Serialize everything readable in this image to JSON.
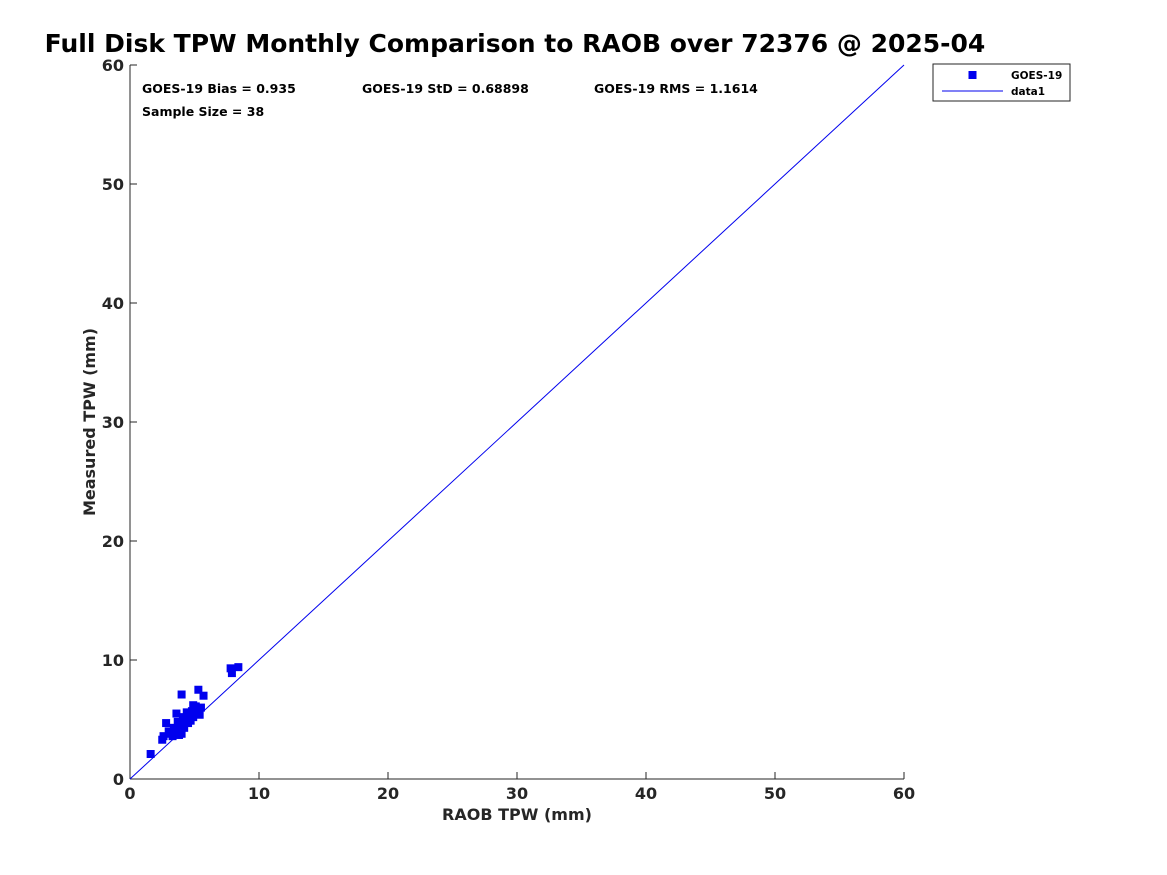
{
  "chart_data": {
    "type": "scatter",
    "title": "Full Disk TPW Monthly Comparison to RAOB over 72376 @ 2025-04",
    "xlabel": "RAOB TPW (mm)",
    "ylabel": "Measured TPW (mm)",
    "xlim": [
      0,
      60
    ],
    "ylim": [
      0,
      60
    ],
    "xticks": [
      0,
      10,
      20,
      30,
      40,
      50,
      60
    ],
    "yticks": [
      0,
      10,
      20,
      30,
      40,
      50,
      60
    ],
    "grid": false,
    "legend_position": "outside top-right",
    "stats": {
      "bias": "GOES-19 Bias = 0.935",
      "std": "GOES-19 StD = 0.68898",
      "rms": "GOES-19 RMS = 1.1614",
      "sample_size": "Sample Size = 38"
    },
    "series": [
      {
        "name": "GOES-19",
        "kind": "scatter",
        "marker": "square",
        "color": "#0000ee",
        "points": [
          [
            1.6,
            2.1
          ],
          [
            2.5,
            3.3
          ],
          [
            2.6,
            3.6
          ],
          [
            2.8,
            4.7
          ],
          [
            3.0,
            4.0
          ],
          [
            3.2,
            3.8
          ],
          [
            3.3,
            3.6
          ],
          [
            3.4,
            4.3
          ],
          [
            3.5,
            3.9
          ],
          [
            3.6,
            5.5
          ],
          [
            3.7,
            4.8
          ],
          [
            3.8,
            3.7
          ],
          [
            3.9,
            4.5
          ],
          [
            4.0,
            7.1
          ],
          [
            4.0,
            3.8
          ],
          [
            4.1,
            5.2
          ],
          [
            4.2,
            4.3
          ],
          [
            4.3,
            4.9
          ],
          [
            4.4,
            5.6
          ],
          [
            4.5,
            4.7
          ],
          [
            4.6,
            5.3
          ],
          [
            4.7,
            4.9
          ],
          [
            4.8,
            5.7
          ],
          [
            4.9,
            6.2
          ],
          [
            4.9,
            5.2
          ],
          [
            5.0,
            5.5
          ],
          [
            5.1,
            6.1
          ],
          [
            5.2,
            5.8
          ],
          [
            5.3,
            7.5
          ],
          [
            5.4,
            5.4
          ],
          [
            5.5,
            6.0
          ],
          [
            5.7,
            7.0
          ],
          [
            7.8,
            9.3
          ],
          [
            7.9,
            8.9
          ],
          [
            8.4,
            9.4
          ],
          [
            3.6,
            4.1
          ],
          [
            4.5,
            5.0
          ],
          [
            5.3,
            5.6
          ]
        ]
      },
      {
        "name": "data1",
        "kind": "line",
        "color": "#0000ee",
        "points": [
          [
            0,
            0
          ],
          [
            60,
            60
          ]
        ]
      }
    ]
  }
}
